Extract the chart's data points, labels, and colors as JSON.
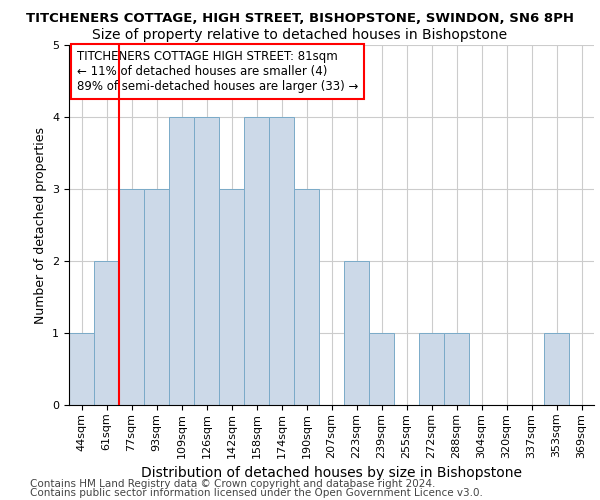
{
  "title_line1": "TITCHENERS COTTAGE, HIGH STREET, BISHOPSTONE, SWINDON, SN6 8PH",
  "title_line2": "Size of property relative to detached houses in Bishopstone",
  "xlabel": "Distribution of detached houses by size in Bishopstone",
  "ylabel": "Number of detached properties",
  "categories": [
    "44sqm",
    "61sqm",
    "77sqm",
    "93sqm",
    "109sqm",
    "126sqm",
    "142sqm",
    "158sqm",
    "174sqm",
    "190sqm",
    "207sqm",
    "223sqm",
    "239sqm",
    "255sqm",
    "272sqm",
    "288sqm",
    "304sqm",
    "320sqm",
    "337sqm",
    "353sqm",
    "369sqm"
  ],
  "values": [
    1,
    2,
    3,
    3,
    4,
    4,
    3,
    4,
    4,
    3,
    0,
    2,
    1,
    0,
    1,
    1,
    0,
    0,
    0,
    1,
    0
  ],
  "bar_color": "#ccd9e8",
  "bar_edge_color": "#7aaac8",
  "vline_index": 2,
  "vline_color": "red",
  "annotation_text": "TITCHENERS COTTAGE HIGH STREET: 81sqm\n← 11% of detached houses are smaller (4)\n89% of semi-detached houses are larger (33) →",
  "annotation_box_color": "white",
  "annotation_box_edge_color": "red",
  "ylim": [
    0,
    5
  ],
  "yticks": [
    0,
    1,
    2,
    3,
    4,
    5
  ],
  "grid_color": "#cccccc",
  "footer_line1": "Contains HM Land Registry data © Crown copyright and database right 2024.",
  "footer_line2": "Contains public sector information licensed under the Open Government Licence v3.0.",
  "title_fontsize": 9.5,
  "subtitle_fontsize": 10,
  "xlabel_fontsize": 10,
  "ylabel_fontsize": 9,
  "tick_fontsize": 8,
  "annotation_fontsize": 8.5,
  "footer_fontsize": 7.5
}
